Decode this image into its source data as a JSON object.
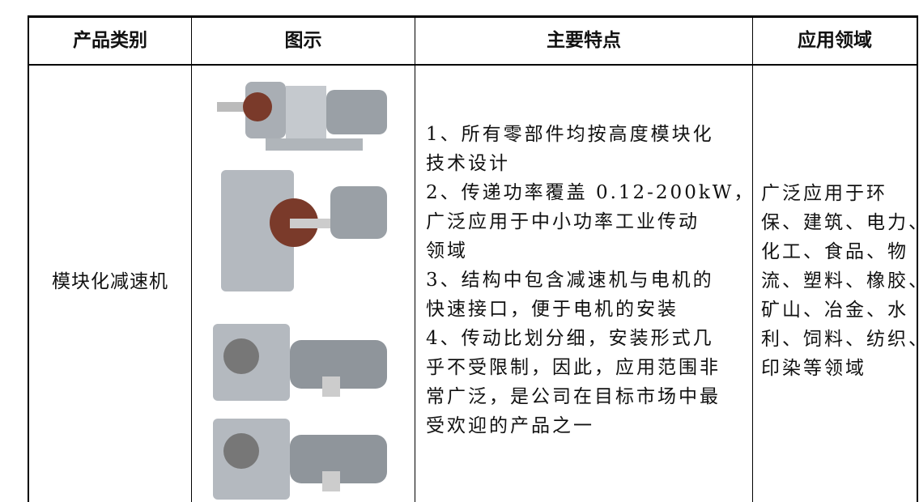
{
  "table": {
    "header": [
      "产品类别",
      "图示",
      "主要特点",
      "应用领域"
    ],
    "rows": [
      {
        "category": "模块化减速机",
        "features": [
          "1、所有零部件均按高度模块化",
          "技术设计",
          "2、传递功率覆盖 0.12-200kW，",
          "广泛应用于中小功率工业传动",
          "领域",
          "3、结构中包含减速机与电机的",
          "快速接口，便于电机的安装",
          "4、传动比划分细，安装形式几",
          "乎不受限制，因此，应用范围非",
          "常广泛，是公司在目标市场中最",
          "受欢迎的产品之一"
        ],
        "applications": [
          "广泛应用于环",
          "保、建筑、电力、",
          "化工、食品、物",
          "流、塑料、橡胶、",
          "矿山、冶金、水",
          "利、饲料、纺织、",
          "印染等领域"
        ]
      }
    ]
  }
}
